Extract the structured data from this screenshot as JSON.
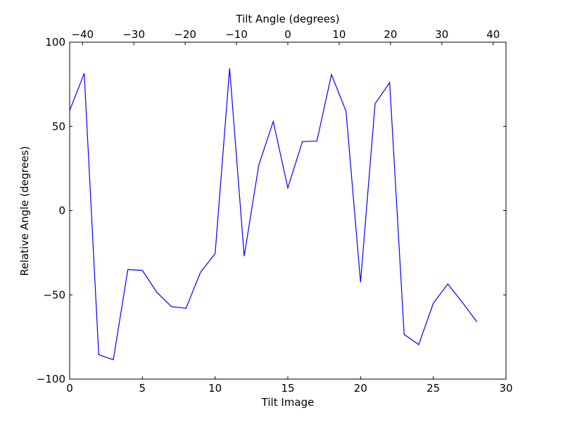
{
  "chart_data": {
    "type": "line",
    "title": "",
    "xlabel": "Tilt Image",
    "ylabel": "Relative Angle (degrees)",
    "top_xlabel": "Tilt Angle (degrees)",
    "xlim": [
      0,
      30
    ],
    "ylim": [
      -100,
      100
    ],
    "top_xlim": [
      -42.5,
      42.5
    ],
    "x_ticks": [
      "0",
      "5",
      "10",
      "15",
      "20",
      "25",
      "30"
    ],
    "x_tick_values": [
      0,
      5,
      10,
      15,
      20,
      25,
      30
    ],
    "y_ticks": [
      "−100",
      "−50",
      "0",
      "50",
      "100"
    ],
    "y_tick_values": [
      -100,
      -50,
      0,
      50,
      100
    ],
    "top_x_ticks": [
      "−40",
      "−30",
      "−20",
      "−10",
      "0",
      "10",
      "20",
      "30",
      "40"
    ],
    "top_x_tick_values": [
      -40,
      -30,
      -20,
      -10,
      0,
      10,
      20,
      30,
      40
    ],
    "grid": false,
    "line_color": "#0000ff",
    "series": [
      {
        "x": [
          0,
          1,
          2,
          3,
          4,
          5,
          6,
          7,
          8,
          9,
          10,
          11,
          12,
          13,
          14,
          15,
          16,
          17,
          18,
          19,
          20,
          21,
          22,
          23,
          24,
          25,
          26,
          27,
          28
        ],
        "y": [
          59.5,
          81.5,
          -85.5,
          -88.5,
          -35,
          -35.5,
          -48.5,
          -57,
          -58,
          -36.5,
          -25.5,
          84.5,
          -27,
          27,
          53,
          13.5,
          41,
          41.3,
          80.8,
          59,
          -42.5,
          63.5,
          76,
          -73.5,
          -79.5,
          -55,
          -43.5,
          -54.5,
          -66
        ]
      }
    ]
  }
}
